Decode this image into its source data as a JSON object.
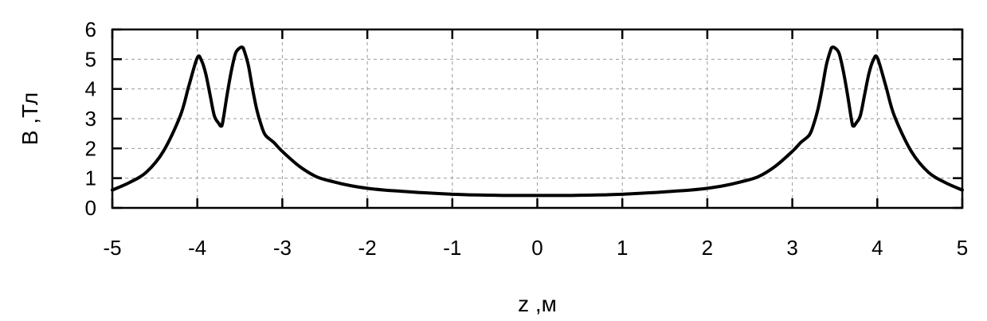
{
  "chart_data": {
    "type": "line",
    "title": "",
    "xlabel": "z ,м",
    "ylabel": "В ,Тл",
    "xlim": [
      -5,
      5
    ],
    "ylim": [
      0,
      6
    ],
    "x_ticks": [
      -5,
      -4,
      -3,
      -2,
      -1,
      0,
      1,
      2,
      3,
      4,
      5
    ],
    "y_ticks": [
      0,
      1,
      2,
      3,
      4,
      5,
      6
    ],
    "x_tick_labels": [
      "-5",
      "-4",
      "-3",
      "-2",
      "-1",
      "0",
      "1",
      "2",
      "3",
      "4",
      "5"
    ],
    "y_tick_labels": [
      "0",
      "1",
      "2",
      "3",
      "4",
      "5",
      "6"
    ],
    "grid": true,
    "series": [
      {
        "x": [
          -5,
          -4.8,
          -4.6,
          -4.4,
          -4.2,
          -4.1,
          -4.0,
          -3.95,
          -3.9,
          -3.85,
          -3.8,
          -3.75,
          -3.72,
          -3.7,
          -3.65,
          -3.6,
          -3.55,
          -3.5,
          -3.47,
          -3.45,
          -3.4,
          -3.35,
          -3.3,
          -3.25,
          -3.2,
          -3.1,
          -3.0,
          -2.8,
          -2.6,
          -2.4,
          -2.2,
          -2.0,
          -1.8,
          -1.6,
          -1.4,
          -1.2,
          -1.0,
          -0.8,
          -0.6,
          -0.4,
          -0.2,
          0,
          0.2,
          0.4,
          0.6,
          0.8,
          1.0,
          1.2,
          1.4,
          1.6,
          1.8,
          2.0,
          2.2,
          2.4,
          2.6,
          2.8,
          3.0,
          3.1,
          3.2,
          3.25,
          3.3,
          3.35,
          3.4,
          3.45,
          3.47,
          3.5,
          3.55,
          3.6,
          3.65,
          3.7,
          3.72,
          3.75,
          3.8,
          3.85,
          3.9,
          3.95,
          4.0,
          4.1,
          4.2,
          4.4,
          4.6,
          4.8,
          5
        ],
        "y": [
          0.6,
          0.85,
          1.2,
          1.9,
          3.1,
          4.1,
          5.05,
          4.95,
          4.5,
          3.8,
          3.1,
          2.85,
          2.75,
          2.9,
          3.8,
          4.6,
          5.2,
          5.38,
          5.4,
          5.3,
          4.8,
          4.0,
          3.3,
          2.8,
          2.45,
          2.2,
          1.9,
          1.4,
          1.05,
          0.88,
          0.75,
          0.66,
          0.6,
          0.56,
          0.52,
          0.49,
          0.46,
          0.44,
          0.43,
          0.42,
          0.42,
          0.42,
          0.42,
          0.42,
          0.43,
          0.44,
          0.46,
          0.49,
          0.52,
          0.56,
          0.6,
          0.66,
          0.75,
          0.88,
          1.05,
          1.4,
          1.9,
          2.2,
          2.45,
          2.8,
          3.3,
          4.0,
          4.8,
          5.3,
          5.4,
          5.38,
          5.2,
          4.6,
          3.8,
          2.9,
          2.75,
          2.85,
          3.1,
          3.8,
          4.5,
          4.95,
          5.05,
          4.1,
          3.1,
          1.9,
          1.2,
          0.85,
          0.6
        ]
      }
    ]
  }
}
